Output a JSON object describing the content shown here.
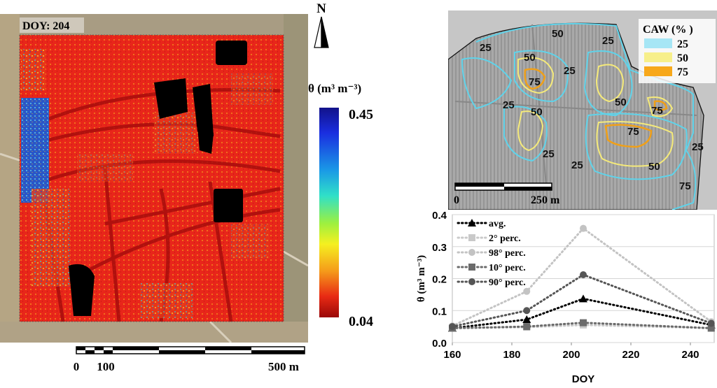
{
  "left_map": {
    "doy_label": "DOY: 204",
    "north_label": "N",
    "colorbar": {
      "title": "θ (m³ m⁻³)",
      "max": "0.45",
      "min": "0.04"
    },
    "scale": {
      "labels": [
        "0",
        "100",
        "500 m"
      ]
    }
  },
  "right_map": {
    "legend_title": "CAW (% )",
    "legend_entries": [
      {
        "label": "25",
        "color": "#a6e6f5"
      },
      {
        "label": "50",
        "color": "#f7ef8a"
      },
      {
        "label": "75",
        "color": "#f7a81b"
      }
    ],
    "contour_labels": [
      "50",
      "25",
      "25",
      "50",
      "75",
      "25",
      "25",
      "50",
      "50",
      "75",
      "75",
      "25",
      "25",
      "25",
      "50",
      "75"
    ],
    "scale": {
      "labels": [
        "0",
        "250 m"
      ]
    }
  },
  "chart_data": {
    "type": "line",
    "xlabel": "DOY",
    "ylabel": "θ (m³ m⁻³)",
    "xlim": [
      160,
      248
    ],
    "ylim": [
      0,
      0.4
    ],
    "xticks": [
      "160",
      "180",
      "200",
      "220",
      "240"
    ],
    "yticks": [
      "0.0",
      "0.1",
      "0.2",
      "0.3",
      "0.4"
    ],
    "x": [
      160,
      185,
      204,
      247
    ],
    "legend_position": "top-left",
    "series": [
      {
        "name": "avg.",
        "values": [
          0.045,
          0.072,
          0.137,
          0.055
        ],
        "color": "#000000",
        "marker": "triangle"
      },
      {
        "name": "2° perc.",
        "values": [
          0.045,
          0.048,
          0.055,
          0.045
        ],
        "color": "#c9c9c9",
        "marker": "square"
      },
      {
        "name": "98° perc.",
        "values": [
          0.052,
          0.16,
          0.357,
          0.065
        ],
        "color": "#c3c3c3",
        "marker": "circle"
      },
      {
        "name": "10° perc.",
        "values": [
          0.045,
          0.05,
          0.062,
          0.045
        ],
        "color": "#6b6b6b",
        "marker": "square"
      },
      {
        "name": "90° perc.",
        "values": [
          0.05,
          0.1,
          0.212,
          0.06
        ],
        "color": "#555555",
        "marker": "circle"
      }
    ]
  }
}
